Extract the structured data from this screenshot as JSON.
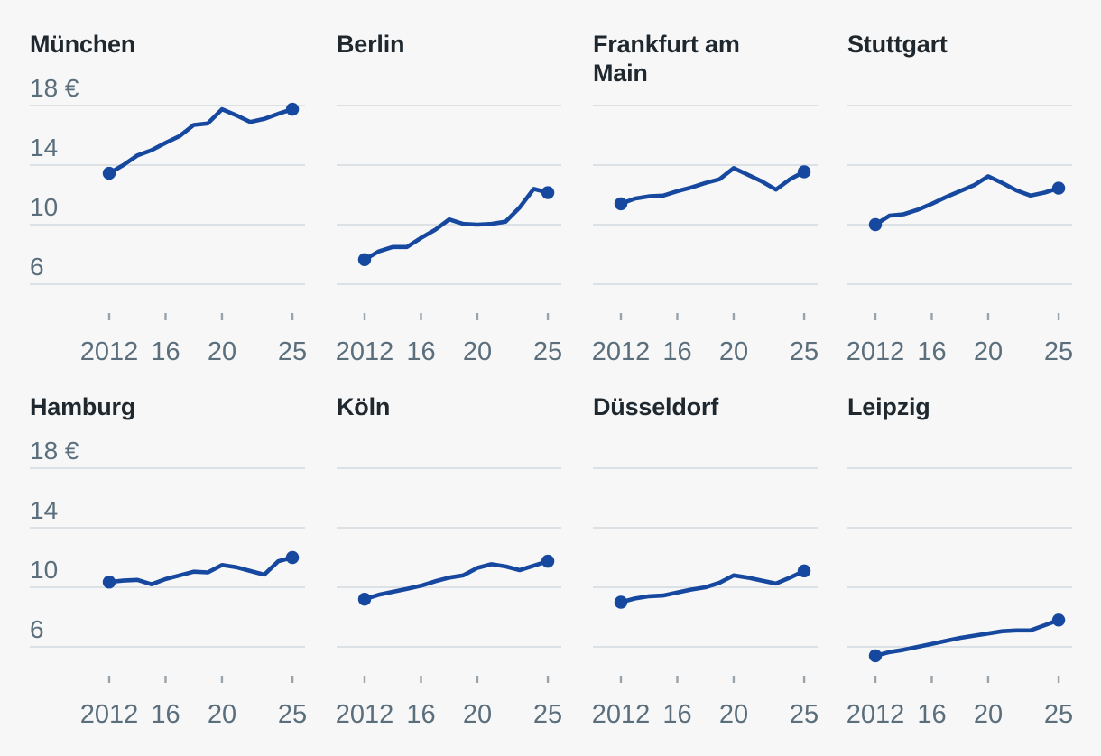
{
  "chart_data": {
    "type": "line",
    "title": "",
    "xlabel": "",
    "ylabel": "",
    "unit_suffix": "€",
    "x": [
      2012,
      2013,
      2014,
      2015,
      2016,
      2017,
      2018,
      2019,
      2020,
      2021,
      2022,
      2023,
      2024,
      2025
    ],
    "xlim": [
      2012,
      2025
    ],
    "ylim": [
      5,
      18.5
    ],
    "grid": "horizontal-only",
    "legend": "none",
    "x_ticks": [
      {
        "year": 2012,
        "label": "2012"
      },
      {
        "year": 2016,
        "label": "16"
      },
      {
        "year": 2020,
        "label": "20"
      },
      {
        "year": 2025,
        "label": "25"
      }
    ],
    "y_gridlines": [
      {
        "value": 18,
        "label": "18 €"
      },
      {
        "value": 14,
        "label": "14"
      },
      {
        "value": 10,
        "label": "10"
      },
      {
        "value": 6,
        "label": "6"
      }
    ],
    "y_labels_note": "y-axis labels shown only on first-column charts",
    "series": [
      {
        "name": "München",
        "show_y_labels": true,
        "values": [
          13.45,
          14.0,
          14.65,
          15.0,
          15.5,
          15.95,
          16.7,
          16.8,
          17.75,
          17.35,
          16.9,
          17.1,
          17.45,
          17.75
        ]
      },
      {
        "name": "Berlin",
        "show_y_labels": false,
        "values": [
          7.65,
          8.2,
          8.5,
          8.5,
          9.1,
          9.65,
          10.35,
          10.05,
          10.0,
          10.05,
          10.2,
          11.15,
          12.4,
          12.15
        ]
      },
      {
        "name": "Frankfurt am Main",
        "show_y_labels": false,
        "values": [
          11.4,
          11.75,
          11.9,
          11.95,
          12.25,
          12.5,
          12.8,
          13.05,
          13.8,
          13.35,
          12.9,
          12.35,
          13.05,
          13.55
        ]
      },
      {
        "name": "Stuttgart",
        "show_y_labels": false,
        "values": [
          10.0,
          10.6,
          10.7,
          11.0,
          11.4,
          11.85,
          12.25,
          12.65,
          13.25,
          12.8,
          12.3,
          11.95,
          12.15,
          12.45
        ]
      },
      {
        "name": "Hamburg",
        "show_y_labels": true,
        "values": [
          10.35,
          10.45,
          10.5,
          10.2,
          10.55,
          10.8,
          11.05,
          11.0,
          11.5,
          11.35,
          11.1,
          10.85,
          11.75,
          12.0
        ]
      },
      {
        "name": "Köln",
        "show_y_labels": false,
        "values": [
          9.2,
          9.5,
          9.7,
          9.9,
          10.1,
          10.4,
          10.65,
          10.8,
          11.3,
          11.55,
          11.4,
          11.15,
          11.45,
          11.75
        ]
      },
      {
        "name": "Düsseldorf",
        "show_y_labels": false,
        "values": [
          9.0,
          9.25,
          9.4,
          9.45,
          9.65,
          9.85,
          10.0,
          10.3,
          10.8,
          10.65,
          10.45,
          10.25,
          10.65,
          11.1
        ]
      },
      {
        "name": "Leipzig",
        "show_y_labels": false,
        "values": [
          5.4,
          5.65,
          5.8,
          6.0,
          6.2,
          6.4,
          6.6,
          6.75,
          6.9,
          7.05,
          7.1,
          7.1,
          7.45,
          7.8
        ]
      }
    ],
    "colors": {
      "line": "#15489e",
      "grid": "#ccd4da",
      "tick": "#98a3ab",
      "axis_label": "#5a6e7c",
      "title": "#1e282e",
      "background": "#f7f7f8"
    }
  }
}
